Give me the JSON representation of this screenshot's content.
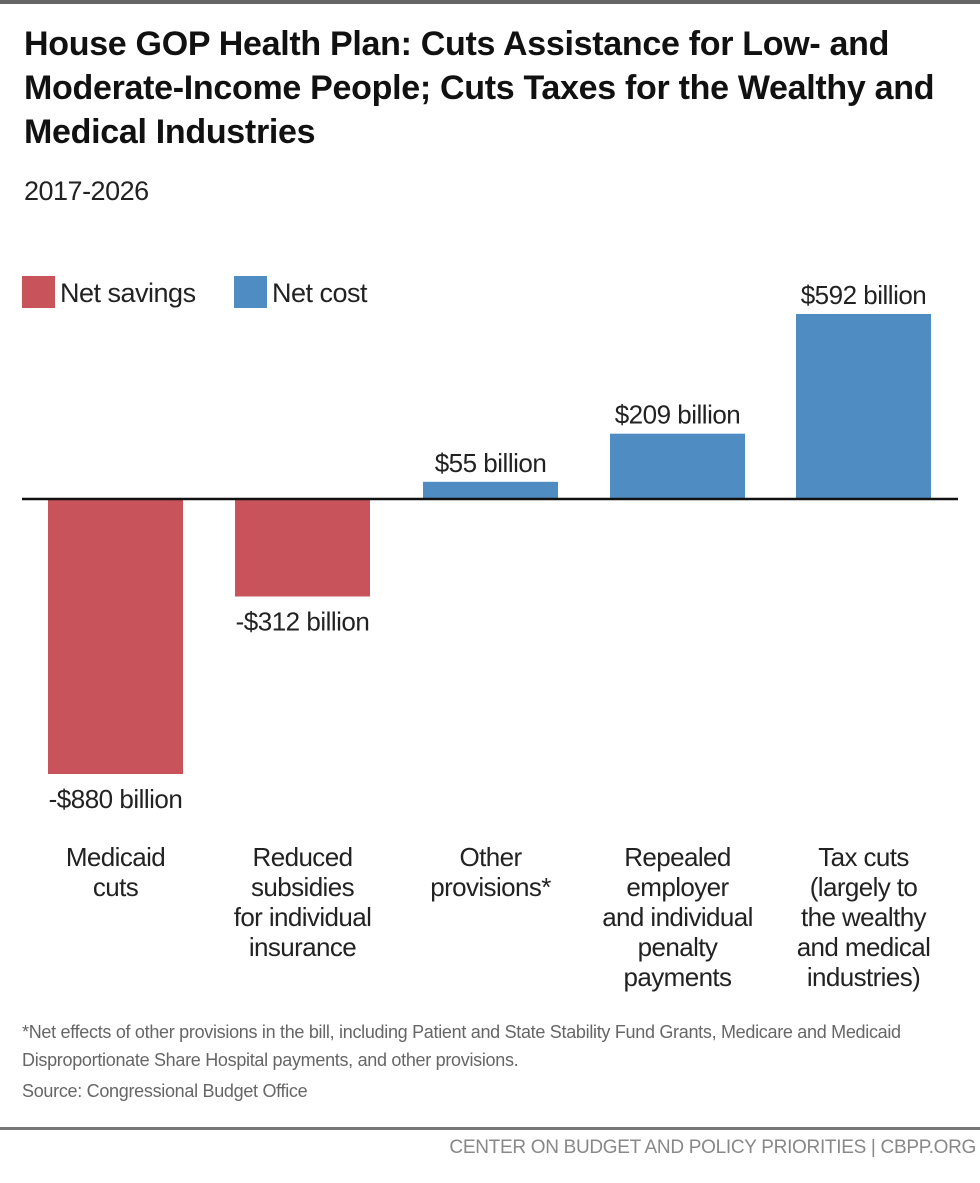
{
  "chart_data": {
    "type": "bar",
    "title": "House GOP Health Plan: Cuts Assistance for Low- and Moderate-Income People; Cuts Taxes for the Wealthy and Medical Industries",
    "subtitle": "2017-2026",
    "categories": [
      [
        "Medicaid",
        "cuts"
      ],
      [
        "Reduced",
        "subsidies",
        "for individual",
        "insurance"
      ],
      [
        "Other",
        "provisions*"
      ],
      [
        "Repealed",
        "employer",
        "and individual",
        "penalty",
        "payments"
      ],
      [
        "Tax cuts",
        "(largely to",
        "the wealthy",
        "and medical",
        "industries)"
      ]
    ],
    "values": [
      -880,
      -312,
      55,
      209,
      592
    ],
    "data_labels": [
      "-$880 billion",
      "-$312 billion",
      "$55 billion",
      "$209 billion",
      "$592 billion"
    ],
    "unit": "billion dollars",
    "legend": [
      {
        "name": "Net savings",
        "color": "#c8535a"
      },
      {
        "name": "Net cost",
        "color": "#4f8cc2"
      }
    ],
    "legend_placement": "top-left",
    "ylim": [
      -880,
      592
    ],
    "grid": false,
    "note": "*Net effects of other provisions in the bill, including Patient and State Stability Fund Grants, Medicare and Medicaid Disproportionate Share Hospital payments, and other provisions.",
    "source": "Source: Congressional Budget Office"
  },
  "footer": {
    "credit": "CENTER ON BUDGET AND POLICY PRIORITIES | CBPP.ORG"
  }
}
